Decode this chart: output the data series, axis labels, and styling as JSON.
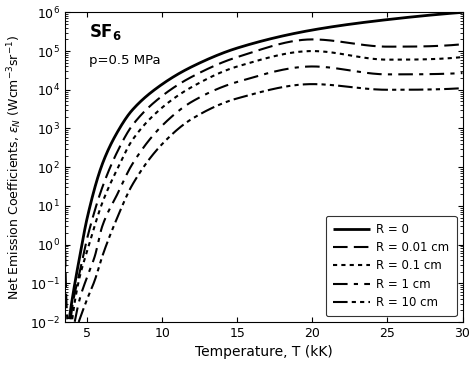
{
  "title_sf6": "SF$_6$",
  "title_pressure": "p=0.5 MPa",
  "xlabel": "Temperature, T (kK)",
  "ylabel": "Net Emission Coefficients, $\\varepsilon_N$ (Wcm$^{-3}$sr$^{-1}$)",
  "xmin": 3.5,
  "xmax": 30,
  "ymin": 0.01,
  "ymax": 1000000,
  "xticks": [
    5,
    10,
    15,
    20,
    25,
    30
  ],
  "legend_entries": [
    "R = 0",
    "R = 0.01 cm",
    "R = 0.1 cm",
    "R = 1 cm",
    "R = 10 cm"
  ],
  "lwidths": [
    2.0,
    1.5,
    1.5,
    1.5,
    1.5
  ],
  "background_color": "white",
  "curve_points": {
    "r0": {
      "T": [
        3.8,
        4.0,
        4.5,
        5.0,
        6.0,
        7.0,
        8.0,
        10.0,
        12.0,
        15.0,
        20.0,
        25.0,
        30.0
      ],
      "y": [
        0.012,
        0.04,
        0.5,
        5,
        120,
        800,
        3000,
        14000,
        40000,
        120000,
        350000,
        650000,
        1000000
      ]
    },
    "r001": {
      "T": [
        3.9,
        4.0,
        4.5,
        5.0,
        6.0,
        7.0,
        8.0,
        10.0,
        12.0,
        15.0,
        20.0,
        25.0,
        30.0
      ],
      "y": [
        0.012,
        0.025,
        0.2,
        1.5,
        30,
        250,
        1200,
        7000,
        22000,
        70000,
        200000,
        130000,
        150000
      ]
    },
    "r01": {
      "T": [
        4.0,
        4.2,
        4.5,
        5.0,
        6.0,
        7.0,
        8.0,
        10.0,
        12.0,
        15.0,
        20.0,
        25.0,
        30.0
      ],
      "y": [
        0.012,
        0.04,
        0.15,
        0.7,
        12,
        90,
        500,
        3500,
        12000,
        40000,
        100000,
        60000,
        70000
      ]
    },
    "r1": {
      "T": [
        4.2,
        4.5,
        5.0,
        5.5,
        6.0,
        7.0,
        8.0,
        10.0,
        12.0,
        15.0,
        20.0,
        25.0,
        30.0
      ],
      "y": [
        0.012,
        0.04,
        0.15,
        0.5,
        3,
        20,
        120,
        1200,
        5000,
        16000,
        40000,
        25000,
        27000
      ]
    },
    "r10": {
      "T": [
        4.5,
        5.0,
        5.5,
        6.0,
        7.0,
        8.0,
        10.0,
        12.0,
        15.0,
        20.0,
        25.0,
        30.0
      ],
      "y": [
        0.012,
        0.04,
        0.12,
        0.5,
        5,
        35,
        400,
        1800,
        6000,
        14000,
        10000,
        11000
      ]
    }
  }
}
